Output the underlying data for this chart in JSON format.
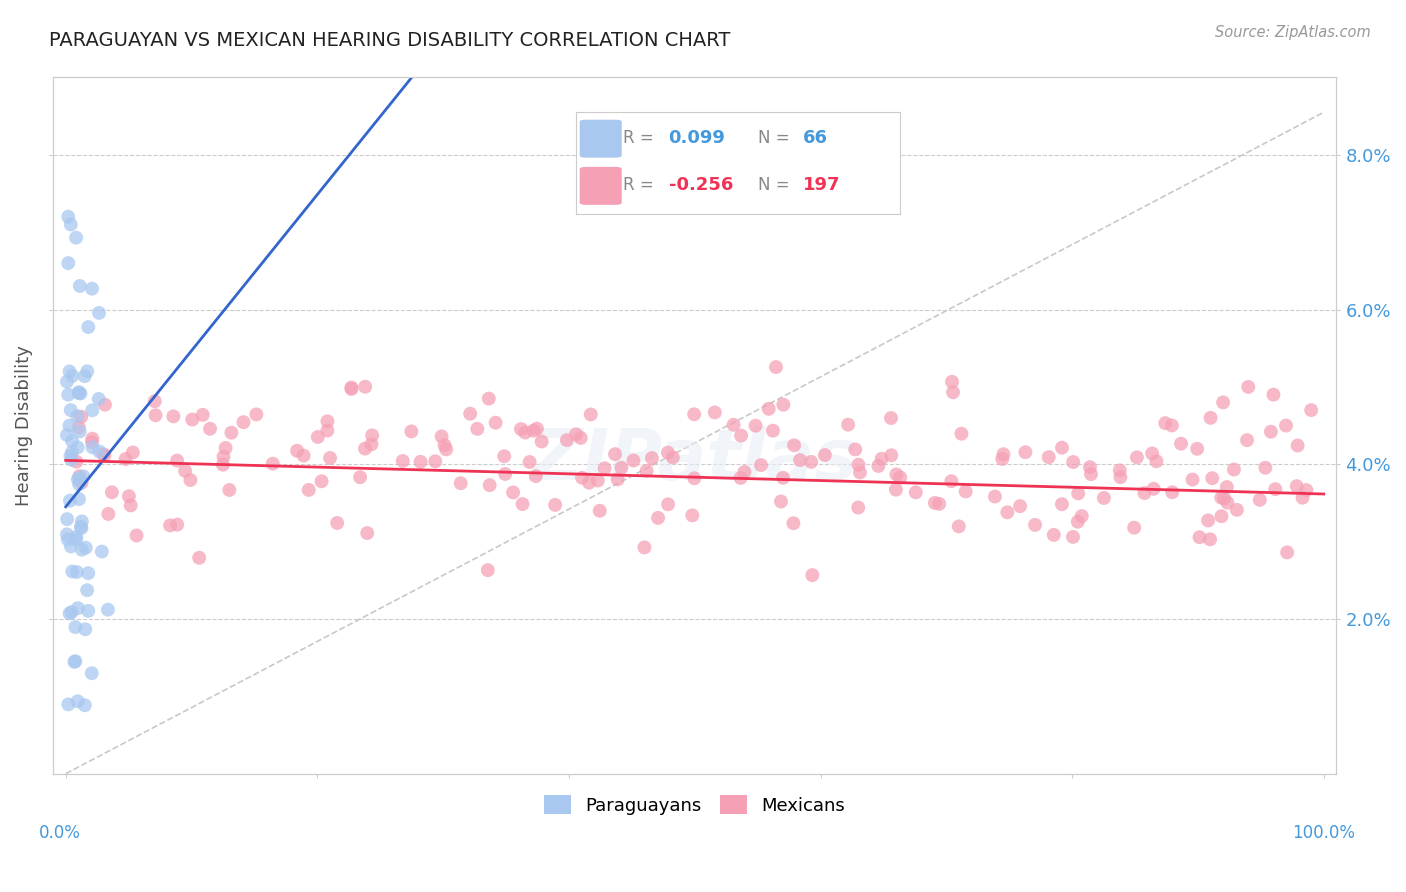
{
  "title": "PARAGUAYAN VS MEXICAN HEARING DISABILITY CORRELATION CHART",
  "source": "Source: ZipAtlas.com",
  "ylabel": "Hearing Disability",
  "blue_color": "#A8C8F0",
  "pink_color": "#F5A0B5",
  "blue_line_color": "#3366CC",
  "pink_line_color": "#EE3355",
  "blue_R": 0.099,
  "blue_N": 66,
  "pink_R": -0.256,
  "pink_N": 197,
  "xlim": [
    0.0,
    1.0
  ],
  "ylim": [
    0.0,
    0.09
  ],
  "ytick_vals": [
    0.02,
    0.04,
    0.06,
    0.08
  ],
  "ytick_labels": [
    "2.0%",
    "4.0%",
    "6.0%",
    "8.0%"
  ],
  "axis_color": "#4499DD",
  "grid_color": "#CCCCCC",
  "ref_line_color": "#BBBBBB"
}
